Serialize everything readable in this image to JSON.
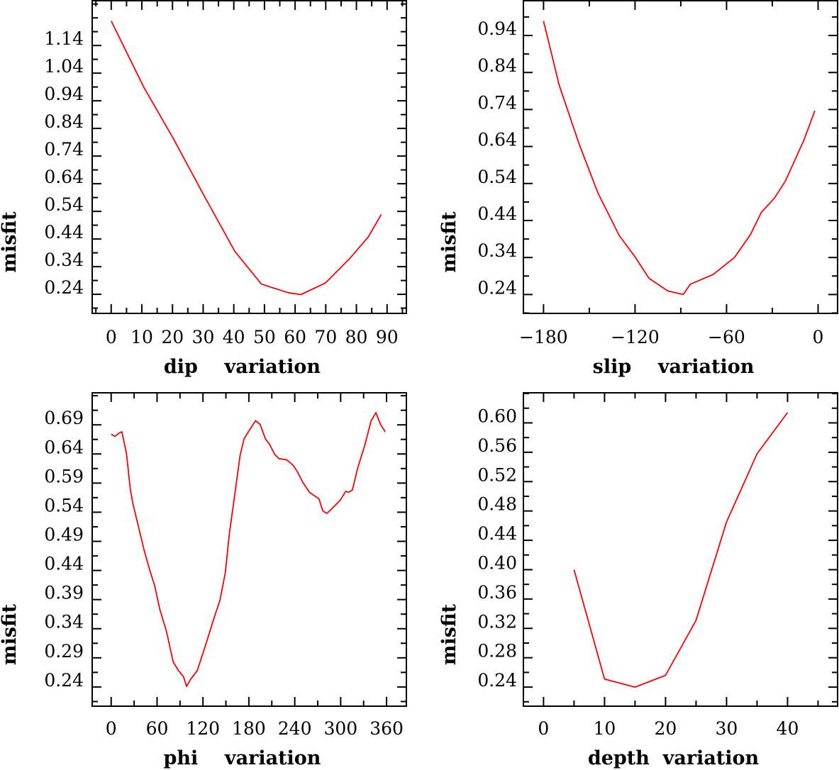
{
  "chart_data": [
    {
      "type": "line",
      "title": "",
      "xlabel": "dip    variation",
      "ylabel": "misfit",
      "xlim": [
        -6.2,
        96.3
      ],
      "ylim": [
        0.171,
        1.302
      ],
      "grid": false,
      "xticks": [
        0,
        10,
        20,
        30,
        40,
        50,
        60,
        70,
        80,
        90
      ],
      "xtick_labels": [
        "0",
        "10",
        "20",
        "30",
        "40",
        "50",
        "60",
        "70",
        "80",
        "90"
      ],
      "xminor": 5,
      "yticks": [
        0.24,
        0.34,
        0.44,
        0.54,
        0.64,
        0.74,
        0.84,
        0.94,
        1.04,
        1.14
      ],
      "ytick_labels": [
        "0.24",
        "0.34",
        "0.44",
        "0.54",
        "0.64",
        "0.74",
        "0.84",
        "0.94",
        "1.04",
        "1.14"
      ],
      "yminor": 0.05,
      "series": [
        {
          "name": "misfit",
          "color": "#ff0000",
          "x": [
            0,
            10.6,
            20.2,
            29.8,
            40.3,
            49,
            57.7,
            61.9,
            69.9,
            77.8,
            83.9,
            88.1
          ],
          "y": [
            1.229,
            0.99,
            0.805,
            0.607,
            0.396,
            0.277,
            0.246,
            0.239,
            0.281,
            0.369,
            0.448,
            0.529
          ]
        }
      ]
    },
    {
      "type": "line",
      "title": "",
      "xlabel": "slip    variation",
      "ylabel": "misfit",
      "xlim": [
        -193.2,
        12.8
      ],
      "ylim": [
        0.189,
        1.034
      ],
      "grid": false,
      "xticks": [
        -180,
        -120,
        -60,
        0
      ],
      "xtick_labels": [
        "−180",
        "−120",
        "−60",
        "0"
      ],
      "xminor": 30,
      "yticks": [
        0.24,
        0.34,
        0.44,
        0.54,
        0.64,
        0.74,
        0.84,
        0.94
      ],
      "ytick_labels": [
        "0.24",
        "0.34",
        "0.44",
        "0.54",
        "0.64",
        "0.74",
        "0.84",
        "0.94"
      ],
      "yminor": 0.05,
      "series": [
        {
          "name": "misfit",
          "color": "#ff0000",
          "x": [
            -180,
            -169.8,
            -156.6,
            -144.3,
            -130.3,
            -119.7,
            -110.9,
            -98.6,
            -88.4,
            -83.7,
            -68.8,
            -54.8,
            -44.3,
            -37.2,
            -28.5,
            -21.4,
            -9.1,
            -2.1
          ],
          "y": [
            0.979,
            0.807,
            0.646,
            0.514,
            0.399,
            0.34,
            0.284,
            0.25,
            0.24,
            0.268,
            0.294,
            0.34,
            0.402,
            0.462,
            0.501,
            0.547,
            0.659,
            0.737
          ]
        }
      ]
    },
    {
      "type": "line",
      "title": "",
      "xlabel": "phi    variation",
      "ylabel": "misfit",
      "xlim": [
        -24.8,
        385.9
      ],
      "ylim": [
        0.207,
        0.745
      ],
      "grid": false,
      "xticks": [
        0,
        60,
        120,
        180,
        240,
        300,
        360
      ],
      "xtick_labels": [
        "0",
        "60",
        "120",
        "180",
        "240",
        "300",
        "360"
      ],
      "xminor": 30,
      "yticks": [
        0.24,
        0.29,
        0.34,
        0.39,
        0.44,
        0.49,
        0.54,
        0.59,
        0.64,
        0.69
      ],
      "ytick_labels": [
        "0.24",
        "0.29",
        "0.34",
        "0.39",
        "0.44",
        "0.49",
        "0.54",
        "0.59",
        "0.64",
        "0.69"
      ],
      "yminor": 0.025,
      "series": [
        {
          "name": "misfit",
          "color": "#ff0000",
          "x": [
            0,
            4.9,
            10.5,
            14,
            20,
            25.2,
            28.7,
            35.7,
            42.7,
            49.6,
            56.6,
            63.6,
            72.4,
            81.1,
            88.1,
            94.4,
            98.6,
            103.8,
            112.5,
            123,
            133.5,
            142.2,
            149.2,
            154.5,
            161.5,
            168.5,
            173.7,
            180.7,
            188.7,
            194.7,
            201.6,
            206.9,
            213.9,
            219.1,
            229.6,
            238.3,
            243.6,
            250.6,
            259.3,
            271.6,
            276.8,
            282.1,
            290.8,
            299.6,
            306.6,
            310.1,
            315.3,
            322.3,
            331.1,
            339.8,
            346.1,
            352,
            358.3
          ],
          "y": [
            0.674,
            0.67,
            0.676,
            0.678,
            0.641,
            0.578,
            0.553,
            0.515,
            0.477,
            0.444,
            0.415,
            0.373,
            0.335,
            0.283,
            0.268,
            0.258,
            0.241,
            0.253,
            0.268,
            0.31,
            0.354,
            0.389,
            0.436,
            0.503,
            0.57,
            0.637,
            0.666,
            0.681,
            0.697,
            0.691,
            0.666,
            0.657,
            0.639,
            0.632,
            0.63,
            0.62,
            0.609,
            0.591,
            0.574,
            0.563,
            0.542,
            0.538,
            0.549,
            0.561,
            0.576,
            0.574,
            0.578,
            0.616,
            0.653,
            0.697,
            0.711,
            0.691,
            0.678
          ]
        }
      ]
    },
    {
      "type": "line",
      "title": "",
      "xlabel": "depth  variation",
      "ylabel": "misfit",
      "xlim": [
        -3.3,
        48.2
      ],
      "ylim": [
        0.214,
        0.641
      ],
      "grid": false,
      "xticks": [
        0,
        10,
        20,
        30,
        40
      ],
      "xtick_labels": [
        "0",
        "10",
        "20",
        "30",
        "40"
      ],
      "xminor": 5,
      "yticks": [
        0.24,
        0.28,
        0.32,
        0.36,
        0.4,
        0.44,
        0.48,
        0.52,
        0.56,
        0.6
      ],
      "ytick_labels": [
        "0.24",
        "0.28",
        "0.32",
        "0.36",
        "0.40",
        "0.44",
        "0.48",
        "0.52",
        "0.56",
        "0.60"
      ],
      "yminor": 0.02,
      "series": [
        {
          "name": "misfit",
          "color": "#ff0000",
          "x": [
            5,
            10,
            15,
            20,
            25,
            30,
            35,
            40
          ],
          "y": [
            0.4,
            0.251,
            0.24,
            0.256,
            0.331,
            0.465,
            0.558,
            0.614
          ]
        }
      ]
    }
  ]
}
